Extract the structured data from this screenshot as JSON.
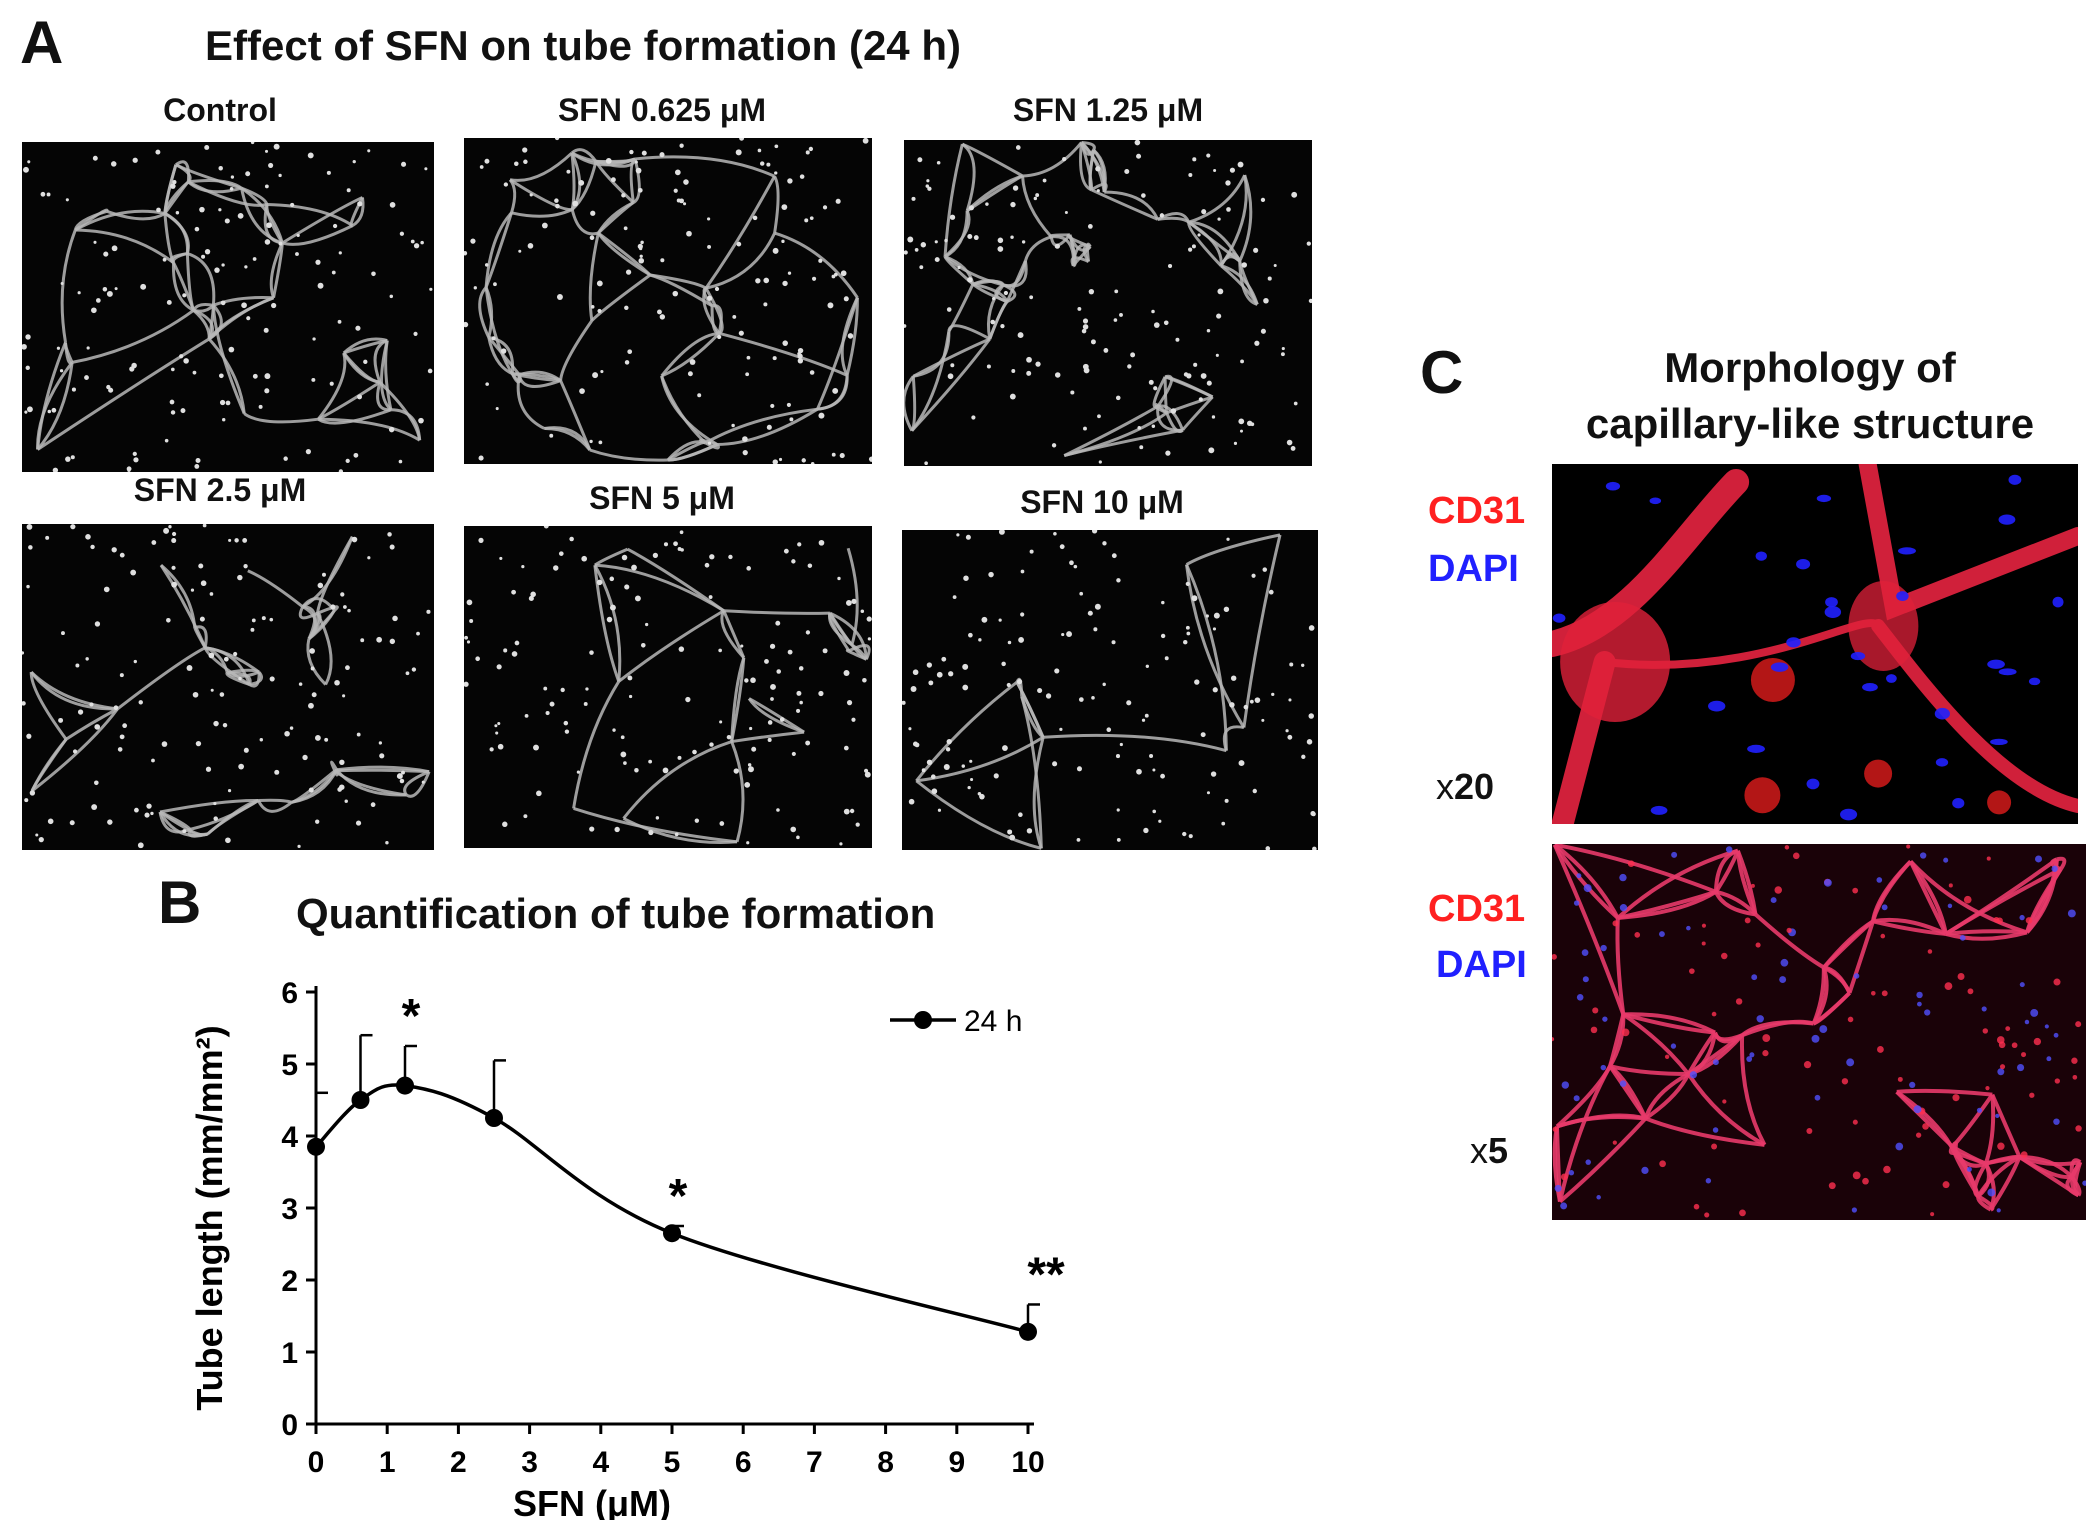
{
  "panel_a": {
    "letter": "A",
    "title": "Effect of SFN on tube formation (24 h)",
    "conditions": [
      "Control",
      "SFN 0.625 μM",
      "SFN 1.25 μM",
      "SFN 2.5 μM",
      "SFN 5 μM",
      "SFN 10 μM"
    ]
  },
  "panel_b": {
    "letter": "B",
    "title": "Quantification of tube formation"
  },
  "panel_c": {
    "letter": "C",
    "title_line1": "Morphology of",
    "title_line2": "capillary-like structure",
    "top": {
      "stain1": "CD31",
      "stain2": "DAPI",
      "mag_prefix": "x",
      "mag_value": "20"
    },
    "bottom": {
      "stain1": "CD31",
      "stain2": "DAPI",
      "mag_prefix": "x",
      "mag_value": "5"
    },
    "colors": {
      "cd31": "#ff2020",
      "dapi": "#2020ff"
    }
  },
  "chart_data": {
    "type": "line",
    "title": "Quantification of tube formation",
    "xlabel": "SFN (μM)",
    "ylabel": "Tube length (mm/mm²)",
    "xlim": [
      0,
      10
    ],
    "ylim": [
      0,
      6
    ],
    "xticks": [
      0,
      1,
      2,
      3,
      4,
      5,
      6,
      7,
      8,
      9,
      10
    ],
    "yticks": [
      0,
      1,
      2,
      3,
      4,
      5,
      6
    ],
    "legend_position": "top-right",
    "series": [
      {
        "name": "24 h",
        "x": [
          0,
          0.625,
          1.25,
          2.5,
          5,
          10
        ],
        "y": [
          3.85,
          4.5,
          4.7,
          4.25,
          2.65,
          1.28
        ],
        "error": [
          0.75,
          0.9,
          0.55,
          0.8,
          0.1,
          0.38
        ],
        "significance": [
          "",
          "",
          "*",
          "",
          "*",
          "**"
        ]
      }
    ]
  }
}
